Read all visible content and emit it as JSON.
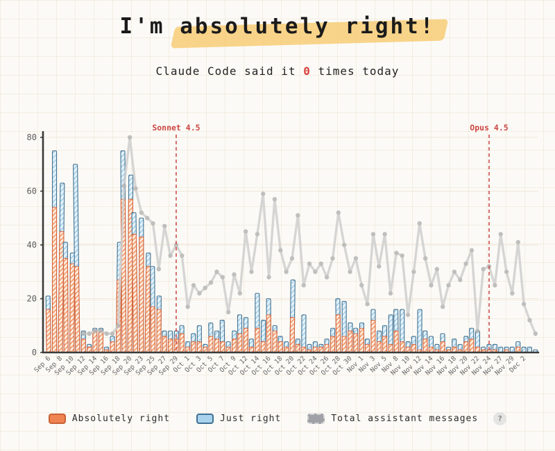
{
  "header": {
    "title_prefix": "I'm ",
    "title_highlight": "absolutely right!",
    "subtitle_before": "Claude Code said it ",
    "subtitle_count": "0",
    "subtitle_after": " times today"
  },
  "legend": {
    "items": [
      {
        "label": "Absolutely right",
        "color": "#f08352"
      },
      {
        "label": "Just right",
        "color": "#a9d3ec"
      },
      {
        "label": "Total assistant messages",
        "color": "#9fa1a6"
      }
    ],
    "help_label": "?"
  },
  "chart_data": {
    "type": "bar",
    "title": "I'm absolutely right!",
    "xlabel": "",
    "ylabel": "",
    "ylim": [
      0,
      80
    ],
    "yticks": [
      0,
      20,
      40,
      60,
      80
    ],
    "grid": true,
    "legend_position": "bottom",
    "categories": [
      "Sep 6",
      "Sep 7",
      "Sep 8",
      "Sep 9",
      "Sep 10",
      "Sep 11",
      "Sep 12",
      "Sep 13",
      "Sep 14",
      "Sep 15",
      "Sep 16",
      "Sep 17",
      "Sep 18",
      "Sep 19",
      "Sep 20",
      "Sep 22",
      "Sep 23",
      "Sep 24",
      "Sep 25",
      "Sep 26",
      "Sep 27",
      "Sep 28",
      "Sep 29",
      "Sep 30",
      "Oct 1",
      "Oct 2",
      "Oct 3",
      "Oct 4",
      "Oct 5",
      "Oct 6",
      "Oct 7",
      "Oct 8",
      "Oct 9",
      "Oct 11",
      "Oct 12",
      "Oct 13",
      "Oct 14",
      "Oct 15",
      "Oct 16",
      "Oct 17",
      "Oct 18",
      "Oct 19",
      "Oct 20",
      "Oct 21",
      "Oct 22",
      "Oct 23",
      "Oct 24",
      "Oct 25",
      "Oct 26",
      "Oct 27",
      "Oct 28",
      "Oct 29",
      "Oct 30",
      "Oct 31",
      "Nov 1",
      "Nov 2",
      "Nov 3",
      "Nov 4",
      "Nov 5",
      "Nov 7",
      "Nov 8",
      "Nov 9",
      "Nov 10",
      "Nov 11",
      "Nov 12",
      "Nov 13",
      "Nov 14",
      "Nov 15",
      "Nov 16",
      "Nov 17",
      "Nov 18",
      "Nov 19",
      "Nov 20",
      "Nov 21",
      "Nov 22",
      "Nov 23",
      "Nov 24",
      "Nov 26",
      "Nov 27",
      "Nov 28",
      "Nov 29",
      "Dec 1",
      "Dec 2",
      "Dec 3",
      "Dec 4"
    ],
    "label_step": 2,
    "last_labeled_index": 82,
    "series": [
      {
        "name": "Absolutely right",
        "type": "bar",
        "values": [
          16,
          54,
          45,
          35,
          33,
          32,
          5,
          2,
          8,
          8,
          1,
          4,
          27,
          57,
          57,
          44,
          43,
          32,
          17,
          16,
          6,
          5,
          5,
          7,
          2,
          4,
          4,
          2,
          6,
          5,
          4,
          2,
          5,
          7,
          9,
          2,
          9,
          4,
          14,
          8,
          4,
          2,
          13,
          3,
          2,
          1,
          2,
          2,
          3,
          6,
          14,
          6,
          8,
          7,
          9,
          3,
          12,
          4,
          6,
          3,
          8,
          4,
          2,
          3,
          1,
          5,
          2,
          1,
          4,
          1,
          2,
          1,
          4,
          5,
          2,
          1,
          1,
          1,
          0,
          1,
          0,
          2,
          0,
          0,
          0
        ]
      },
      {
        "name": "Just right",
        "type": "bar",
        "values": [
          21,
          75,
          63,
          41,
          37,
          70,
          8,
          3,
          9,
          9,
          2,
          6,
          41,
          75,
          66,
          52,
          50,
          37,
          32,
          21,
          8,
          8,
          8,
          10,
          4,
          7,
          10,
          3,
          11,
          8,
          12,
          4,
          8,
          14,
          13,
          5,
          22,
          12,
          20,
          10,
          6,
          4,
          27,
          5,
          14,
          3,
          4,
          3,
          5,
          9,
          20,
          19,
          11,
          9,
          11,
          5,
          16,
          8,
          10,
          14,
          16,
          16,
          4,
          6,
          16,
          8,
          6,
          3,
          7,
          2,
          5,
          3,
          6,
          9,
          8,
          2,
          3,
          3,
          2,
          2,
          2,
          4,
          2,
          2,
          1
        ]
      },
      {
        "name": "Total assistant messages",
        "type": "line",
        "values": [
          null,
          null,
          null,
          null,
          null,
          null,
          7,
          7,
          8,
          8,
          7,
          7,
          10,
          62,
          80,
          61,
          52,
          50,
          48,
          31,
          47,
          36,
          40,
          36,
          17,
          25,
          22,
          24,
          26,
          30,
          28,
          15,
          29,
          22,
          45,
          30,
          44,
          59,
          28,
          57,
          38,
          30,
          35,
          51,
          25,
          33,
          30,
          33,
          28,
          35,
          52,
          40,
          30,
          35,
          25,
          18,
          44,
          32,
          44,
          22,
          37,
          36,
          14,
          30,
          48,
          35,
          25,
          31,
          17,
          25,
          30,
          27,
          33,
          38,
          8,
          31,
          32,
          25,
          44,
          30,
          22,
          41,
          18,
          12,
          7
        ]
      }
    ],
    "annotations": [
      {
        "label": "Sonnet 4.5",
        "index": 22
      },
      {
        "label": "Opus 4.5",
        "index": 76
      }
    ],
    "colors": {
      "bar_orange_fill": "#fcebdd",
      "bar_orange_hatch": "#ef8a55",
      "bar_orange_border": "#d9653c",
      "bar_blue_fill": "#e3f1fa",
      "bar_blue_hatch": "#85bfdf",
      "bar_blue_border": "#41708f",
      "line_gray": "#cfcfcf",
      "dot_gray": "#b5b5b5",
      "axis": "#3b3b3b",
      "tick_text": "#5c5c5c",
      "gridline": "#f2e5d9",
      "annotation_red": "#cc4743"
    }
  }
}
